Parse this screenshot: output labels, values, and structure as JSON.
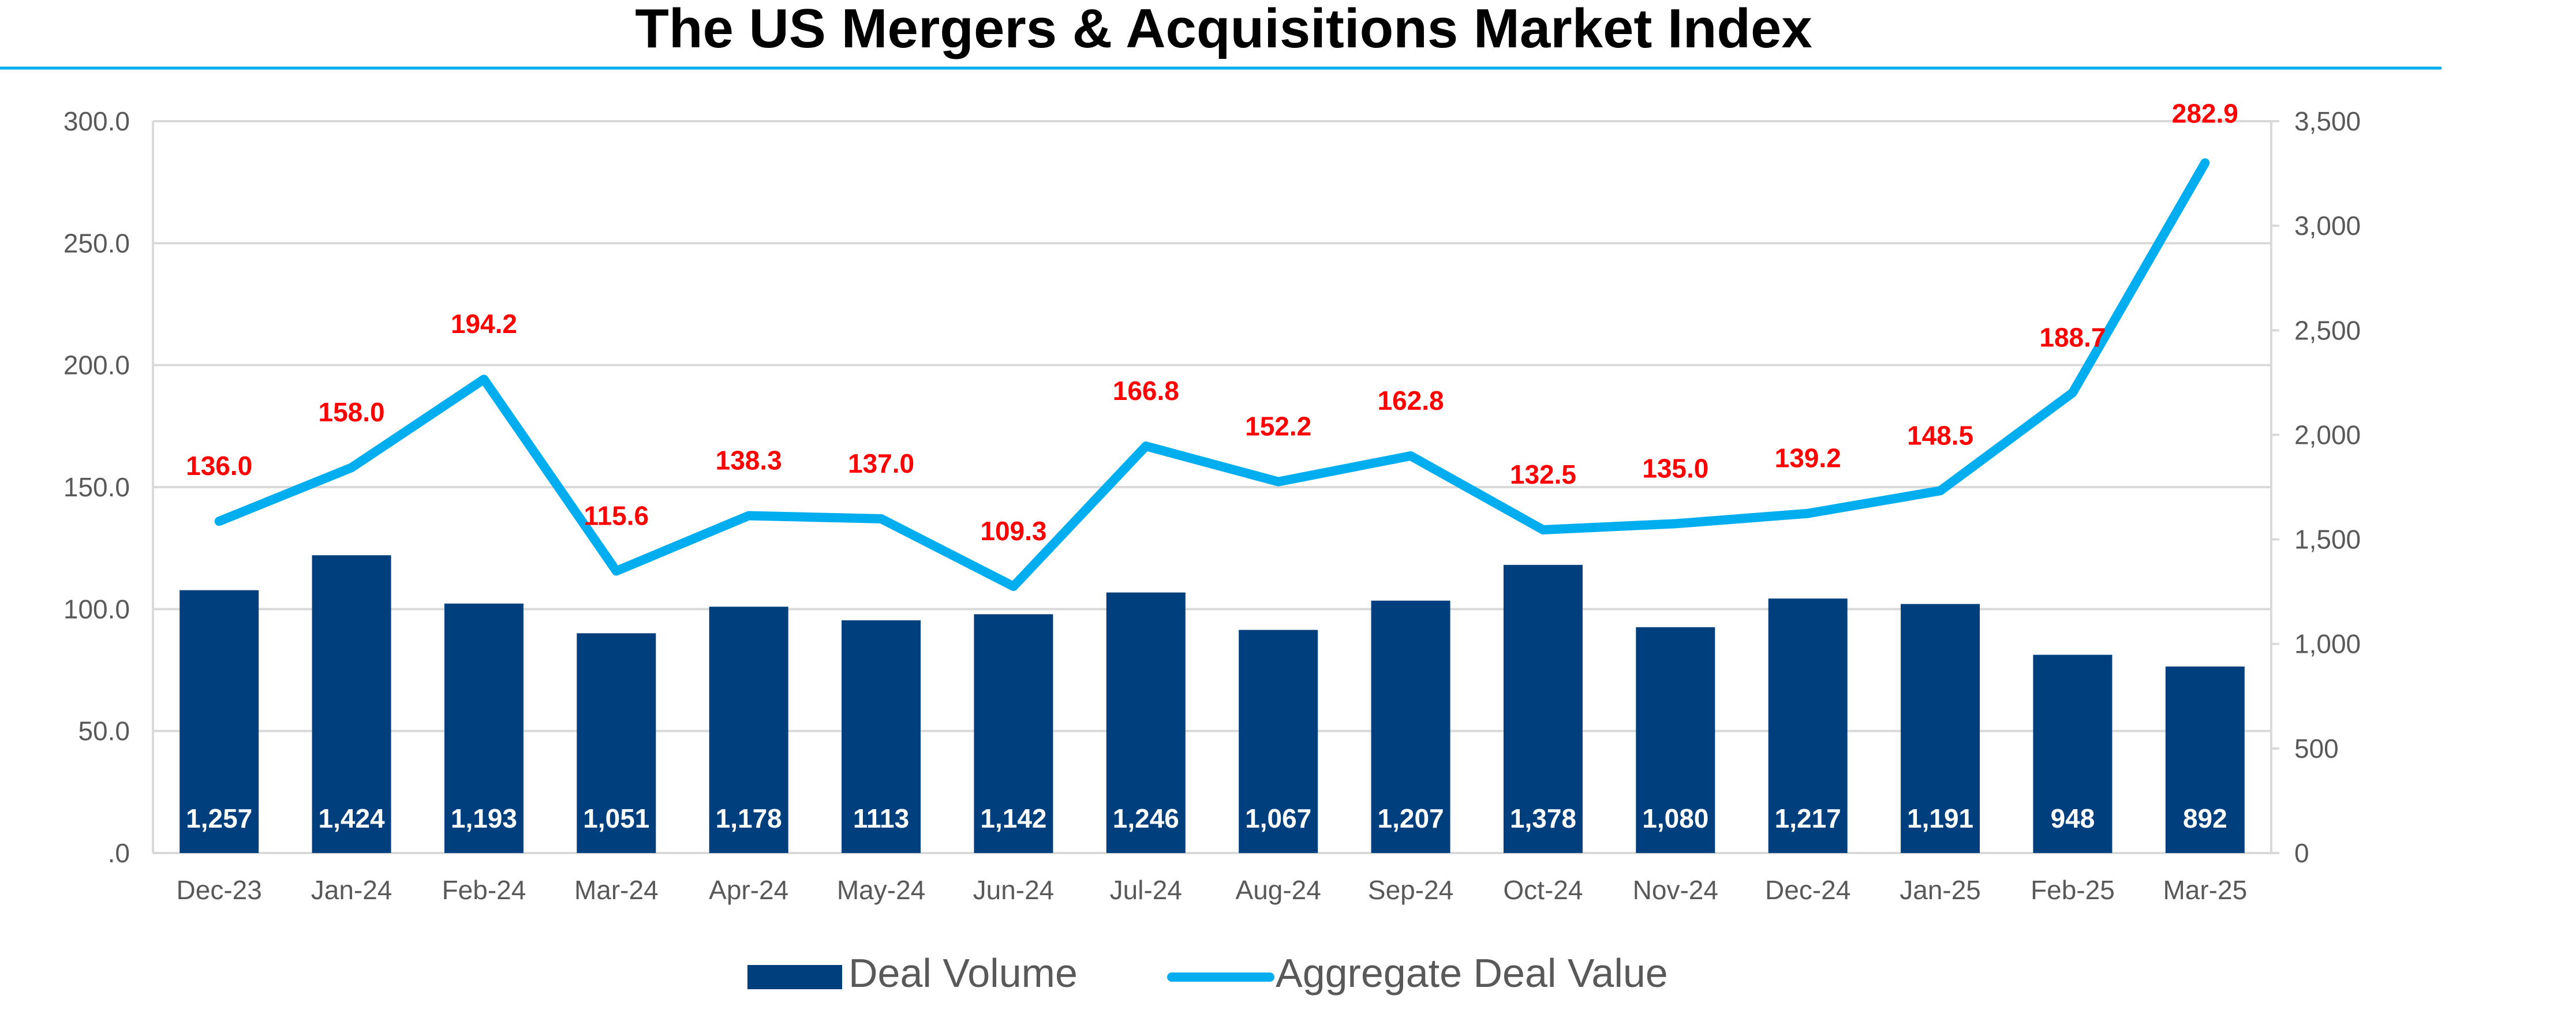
{
  "chart_data": {
    "type": "bar",
    "title": "The US Mergers & Acquisitions Market Index",
    "categories": [
      "Dec-23",
      "Jan-24",
      "Feb-24",
      "Mar-24",
      "Apr-24",
      "May-24",
      "Jun-24",
      "Jul-24",
      "Aug-24",
      "Sep-24",
      "Oct-24",
      "Nov-24",
      "Dec-24",
      "Jan-25",
      "Feb-25",
      "Mar-25"
    ],
    "series": [
      {
        "name": "Deal Volume",
        "type": "bar",
        "axis": "right",
        "values": [
          1257,
          1424,
          1193,
          1051,
          1178,
          1113,
          1142,
          1246,
          1067,
          1207,
          1378,
          1080,
          1217,
          1191,
          948,
          892
        ],
        "labels": [
          "1,257",
          "1,424",
          "1,193",
          "1,051",
          "1,178",
          "1113",
          "1,142",
          "1,246",
          "1,067",
          "1,207",
          "1,378",
          "1,080",
          "1,217",
          "1,191",
          "948",
          "892"
        ],
        "color": "#003f7d",
        "label_color": "#ffffff"
      },
      {
        "name": "Aggregate Deal Value",
        "type": "line",
        "axis": "left",
        "values": [
          136.0,
          158.0,
          194.2,
          115.6,
          138.3,
          137.0,
          109.3,
          166.8,
          152.2,
          162.8,
          132.5,
          135.0,
          139.2,
          148.5,
          188.7,
          282.9
        ],
        "labels": [
          "136.0",
          "158.0",
          "194.2",
          "115.6",
          "138.3",
          "137.0",
          "109.3",
          "166.8",
          "152.2",
          "162.8",
          "132.5",
          "135.0",
          "139.2",
          "148.5",
          "188.7",
          "282.9"
        ],
        "color": "#00aeef",
        "label_color": "#ff0000"
      }
    ],
    "y_left": {
      "range": [
        0,
        300
      ],
      "ticks": [
        0,
        50,
        100,
        150,
        200,
        250,
        300
      ],
      "tick_labels": [
        ".0",
        "50.0",
        "100.0",
        "150.0",
        "200.0",
        "250.0",
        "300.0"
      ]
    },
    "y_right": {
      "range": [
        0,
        3500
      ],
      "ticks": [
        0,
        500,
        1000,
        1500,
        2000,
        2500,
        3000,
        3500
      ],
      "tick_labels": [
        "0",
        "500",
        "1,000",
        "1,500",
        "2,000",
        "2,500",
        "3,000",
        "3,500"
      ]
    },
    "grid": true,
    "legend_position": "bottom-center",
    "colors": {
      "grid": "#d9d9d9",
      "axis_text": "#595959",
      "title_rule": "#00aeef",
      "title_text": "#000000"
    }
  }
}
